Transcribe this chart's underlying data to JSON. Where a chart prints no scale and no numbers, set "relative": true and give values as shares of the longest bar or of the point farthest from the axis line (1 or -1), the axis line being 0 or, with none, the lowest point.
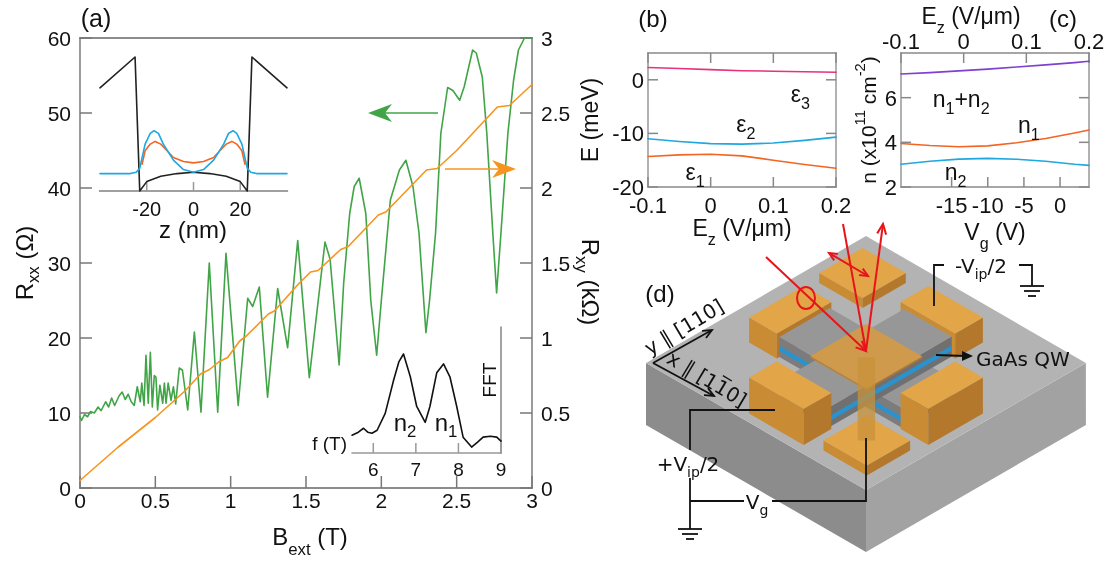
{
  "chart_data": [
    {
      "type": "line",
      "title": "(a)",
      "xlabel": "B$_{ext}$ (T)",
      "ylabel": "R$_{xx}$ (Ω)",
      "y2label": "R$_{xy}$ (kΩ)",
      "xlim": [
        0,
        3
      ],
      "xticks": [
        0,
        0.5,
        1,
        1.5,
        2,
        2.5,
        3
      ],
      "ylim": [
        0,
        60
      ],
      "yticks": [
        0,
        10,
        20,
        30,
        40,
        50,
        60
      ],
      "y2lim": [
        0,
        3
      ],
      "y2ticks": [
        0,
        0.5,
        1,
        1.5,
        2,
        2.5,
        3
      ],
      "series": [
        {
          "color": "#41a447",
          "x": [
            0,
            0.01,
            0.03,
            0.05,
            0.07,
            0.095,
            0.12,
            0.14,
            0.17,
            0.19,
            0.21,
            0.23,
            0.26,
            0.28,
            0.3,
            0.32,
            0.34,
            0.36,
            0.38,
            0.4,
            0.41,
            0.425,
            0.438,
            0.453,
            0.467,
            0.48,
            0.493,
            0.504,
            0.515,
            0.53,
            0.549,
            0.56,
            0.571,
            0.585,
            0.604,
            0.62,
            0.635,
            0.659,
            0.68,
            0.715,
            0.759,
            0.803,
            0.858,
            0.914,
            0.969,
            1.05,
            1.113,
            1.146,
            1.19,
            1.245,
            1.312,
            1.378,
            1.445,
            1.522,
            1.626,
            1.66,
            1.72,
            1.75,
            1.79,
            1.82,
            1.853,
            1.897,
            1.93,
            1.969,
            2,
            2.04,
            2.06,
            2.12,
            2.163,
            2.21,
            2.25,
            2.296,
            2.32,
            2.36,
            2.395,
            2.44,
            2.475,
            2.52,
            2.55,
            2.606,
            2.63,
            2.67,
            2.7,
            2.74,
            2.765,
            2.794,
            2.84,
            2.878,
            2.91,
            2.95,
            3
          ],
          "values": [
            9.5,
            9,
            9.8,
            9.5,
            10.2,
            10,
            10.8,
            10.3,
            11.5,
            10.8,
            12,
            11,
            12.3,
            12.8,
            11.8,
            12.5,
            11.5,
            11,
            13.5,
            11.5,
            14,
            11,
            17.7,
            11.3,
            18.1,
            10.8,
            15,
            14.8,
            10.4,
            13.7,
            11.3,
            14,
            11.3,
            14,
            11.7,
            13.5,
            11.2,
            16,
            15.7,
            10.4,
            20.8,
            10.1,
            30,
            10.1,
            31.3,
            11,
            25.3,
            24.2,
            26.8,
            12.1,
            26.6,
            18.7,
            33,
            14.7,
            32.8,
            30.5,
            16.4,
            27.3,
            36.6,
            40.2,
            41.3,
            36.6,
            25,
            17.7,
            25,
            34,
            38.4,
            42.4,
            43.7,
            40.2,
            34,
            20.7,
            25,
            34,
            47.3,
            53.4,
            53,
            51.7,
            53.5,
            58.4,
            58,
            54.8,
            47.3,
            34,
            26,
            34,
            47.3,
            54.4,
            58.4,
            60,
            60
          ]
        },
        {
          "color": "#f7941d",
          "axis": "y2",
          "x": [
            0,
            0.25,
            0.5,
            0.7,
            0.8,
            0.86,
            0.92,
            0.98,
            1.06,
            1.1,
            1.25,
            1.29,
            1.45,
            1.53,
            1.58,
            1.73,
            1.78,
            1.98,
            2.03,
            2.3,
            2.37,
            2.5,
            2.77,
            2.85,
            3
          ],
          "values": [
            0.05,
            0.27,
            0.47,
            0.65,
            0.76,
            0.79,
            0.84,
            0.87,
            0.98,
            1.01,
            1.16,
            1.18,
            1.36,
            1.44,
            1.45,
            1.59,
            1.61,
            1.82,
            1.84,
            2.12,
            2.13,
            2.25,
            2.54,
            2.55,
            2.69
          ]
        }
      ]
    },
    {
      "type": "line",
      "xlabel": "z (nm)",
      "xlim": [
        -40,
        40
      ],
      "xticks": [
        -20,
        0,
        20
      ],
      "relative": true,
      "tick_labels": "x",
      "series": [
        {
          "color": "#222222",
          "x": [
            -40,
            -25,
            -23,
            -20,
            -14,
            -7,
            0,
            7,
            14,
            20,
            23,
            25,
            40
          ],
          "values": [
            0.77,
            1,
            0,
            0.07,
            0.11,
            0.13,
            0.14,
            0.13,
            0.11,
            0.07,
            0,
            1,
            0.77
          ]
        },
        {
          "color": "#f26522",
          "x": [
            -22,
            -20.7,
            -18.5,
            -16.4,
            -14,
            -12.9,
            -8.6,
            -4.3,
            0,
            4.3,
            8.6,
            12.9,
            14,
            16.4,
            18.5,
            20.7,
            22
          ],
          "values": [
            0.2,
            0.3,
            0.35,
            0.37,
            0.35,
            0.33,
            0.25,
            0.22,
            0.21,
            0.22,
            0.25,
            0.33,
            0.35,
            0.37,
            0.35,
            0.3,
            0.2
          ]
        },
        {
          "color": "#1ea7e1",
          "x": [
            -40,
            -27,
            -24.5,
            -23,
            -20.7,
            -18.5,
            -16.9,
            -15,
            -12.9,
            -8.6,
            -4.3,
            0,
            4.3,
            8.6,
            12.9,
            15,
            16.9,
            18.5,
            20.7,
            23,
            24.5,
            27,
            40
          ],
          "values": [
            0.13,
            0.13,
            0.14,
            0.17,
            0.35,
            0.43,
            0.45,
            0.43,
            0.35,
            0.23,
            0.16,
            0.14,
            0.16,
            0.23,
            0.35,
            0.43,
            0.45,
            0.43,
            0.35,
            0.17,
            0.14,
            0.13,
            0.13
          ]
        }
      ]
    },
    {
      "type": "line",
      "xlabel": "f (T)",
      "ylabel": "FFT",
      "xlim": [
        5.5,
        9
      ],
      "xticks": [
        6,
        7,
        8,
        9
      ],
      "relative": true,
      "tick_labels": "x",
      "series": [
        {
          "color": "#111111",
          "x": [
            5.5,
            5.65,
            5.77,
            5.87,
            5.97,
            6.09,
            6.28,
            6.48,
            6.6,
            6.71,
            6.87,
            7.02,
            7.22,
            7.33,
            7.49,
            7.65,
            7.8,
            7.96,
            8.11,
            8.31,
            8.45,
            8.58,
            8.75,
            8.9,
            9
          ],
          "values": [
            0.18,
            0.21,
            0.25,
            0.21,
            0.2,
            0.23,
            0.4,
            0.74,
            0.92,
            1,
            0.77,
            0.47,
            0.31,
            0.47,
            0.81,
            0.9,
            0.77,
            0.47,
            0.16,
            0.06,
            0.11,
            0.16,
            0.17,
            0.16,
            0.12
          ]
        }
      ],
      "annotations": [
        "n$_{2}$",
        "n$_{1}$"
      ]
    },
    {
      "type": "line",
      "title": "(b)",
      "xlabel": "E$_{z}$ (V/μm)",
      "ylabel": "E (meV)",
      "xlim": [
        -0.1,
        0.2
      ],
      "xticks": [
        -0.1,
        0,
        0.1,
        0.2
      ],
      "ylim": [
        -20,
        5
      ],
      "yticks": [
        -20,
        -10,
        0
      ],
      "series": [
        {
          "name": "ε$_{1}$",
          "color": "#f26522",
          "x": [
            -0.1,
            -0.05,
            0,
            0.05,
            0.1,
            0.15,
            0.2
          ],
          "values": [
            -14.3,
            -14,
            -13.9,
            -14.2,
            -15,
            -15.8,
            -16.5
          ]
        },
        {
          "name": "ε$_{2}$",
          "color": "#1ea7e1",
          "x": [
            -0.1,
            -0.05,
            0,
            0.05,
            0.1,
            0.15,
            0.2
          ],
          "values": [
            -11,
            -11.5,
            -11.9,
            -12,
            -11.8,
            -11.3,
            -10.7
          ]
        },
        {
          "name": "ε$_{3}$",
          "color": "#e8317a",
          "x": [
            -0.1,
            -0.05,
            0,
            0.05,
            0.1,
            0.15,
            0.2
          ],
          "values": [
            2.3,
            2.1,
            1.9,
            1.7,
            1.6,
            1.5,
            1.4
          ]
        }
      ]
    },
    {
      "type": "line",
      "title": "(c)",
      "xlabel": "V$_{g}$ (V)",
      "x2label": "E$_{z}$ (V/μm)",
      "ylabel": "n (x10$^{11}$ cm$^{-2}$)",
      "xlim": [
        -22,
        4
      ],
      "xticks": [
        -15,
        -10,
        -5,
        0
      ],
      "x2lim": [
        -0.1,
        0.2
      ],
      "x2ticks": [
        -0.1,
        0,
        0.1,
        0.2
      ],
      "ylim": [
        2,
        8
      ],
      "yticks": [
        2,
        4,
        6
      ],
      "series": [
        {
          "name": "n$_{1}$+n$_{2}$",
          "color": "#7f3fd0",
          "x": [
            -22,
            -18,
            -14,
            -10,
            -6,
            -2,
            2,
            4
          ],
          "values": [
            7.06,
            7.12,
            7.2,
            7.28,
            7.37,
            7.47,
            7.57,
            7.63
          ]
        },
        {
          "name": "n$_{1}$",
          "color": "#f26522",
          "x": [
            -22,
            -18,
            -14,
            -10,
            -6,
            -2,
            2,
            4
          ],
          "values": [
            3.95,
            3.86,
            3.8,
            3.84,
            3.98,
            4.17,
            4.42,
            4.55
          ]
        },
        {
          "name": "n$_{2}$",
          "color": "#1ea7e1",
          "x": [
            -22,
            -18,
            -14,
            -10,
            -6,
            -2,
            2,
            4
          ],
          "values": [
            3.02,
            3.15,
            3.25,
            3.28,
            3.24,
            3.15,
            3.02,
            2.97
          ]
        }
      ]
    },
    {
      "type": "other",
      "title": "(d)",
      "annotations": [
        "y ∥ [110]",
        "x ∥ [11̅0]",
        "GaAs QW",
        "-V$_{ip}$/2",
        "+V$_{ip}$/2",
        "V$_{g}$"
      ]
    }
  ]
}
